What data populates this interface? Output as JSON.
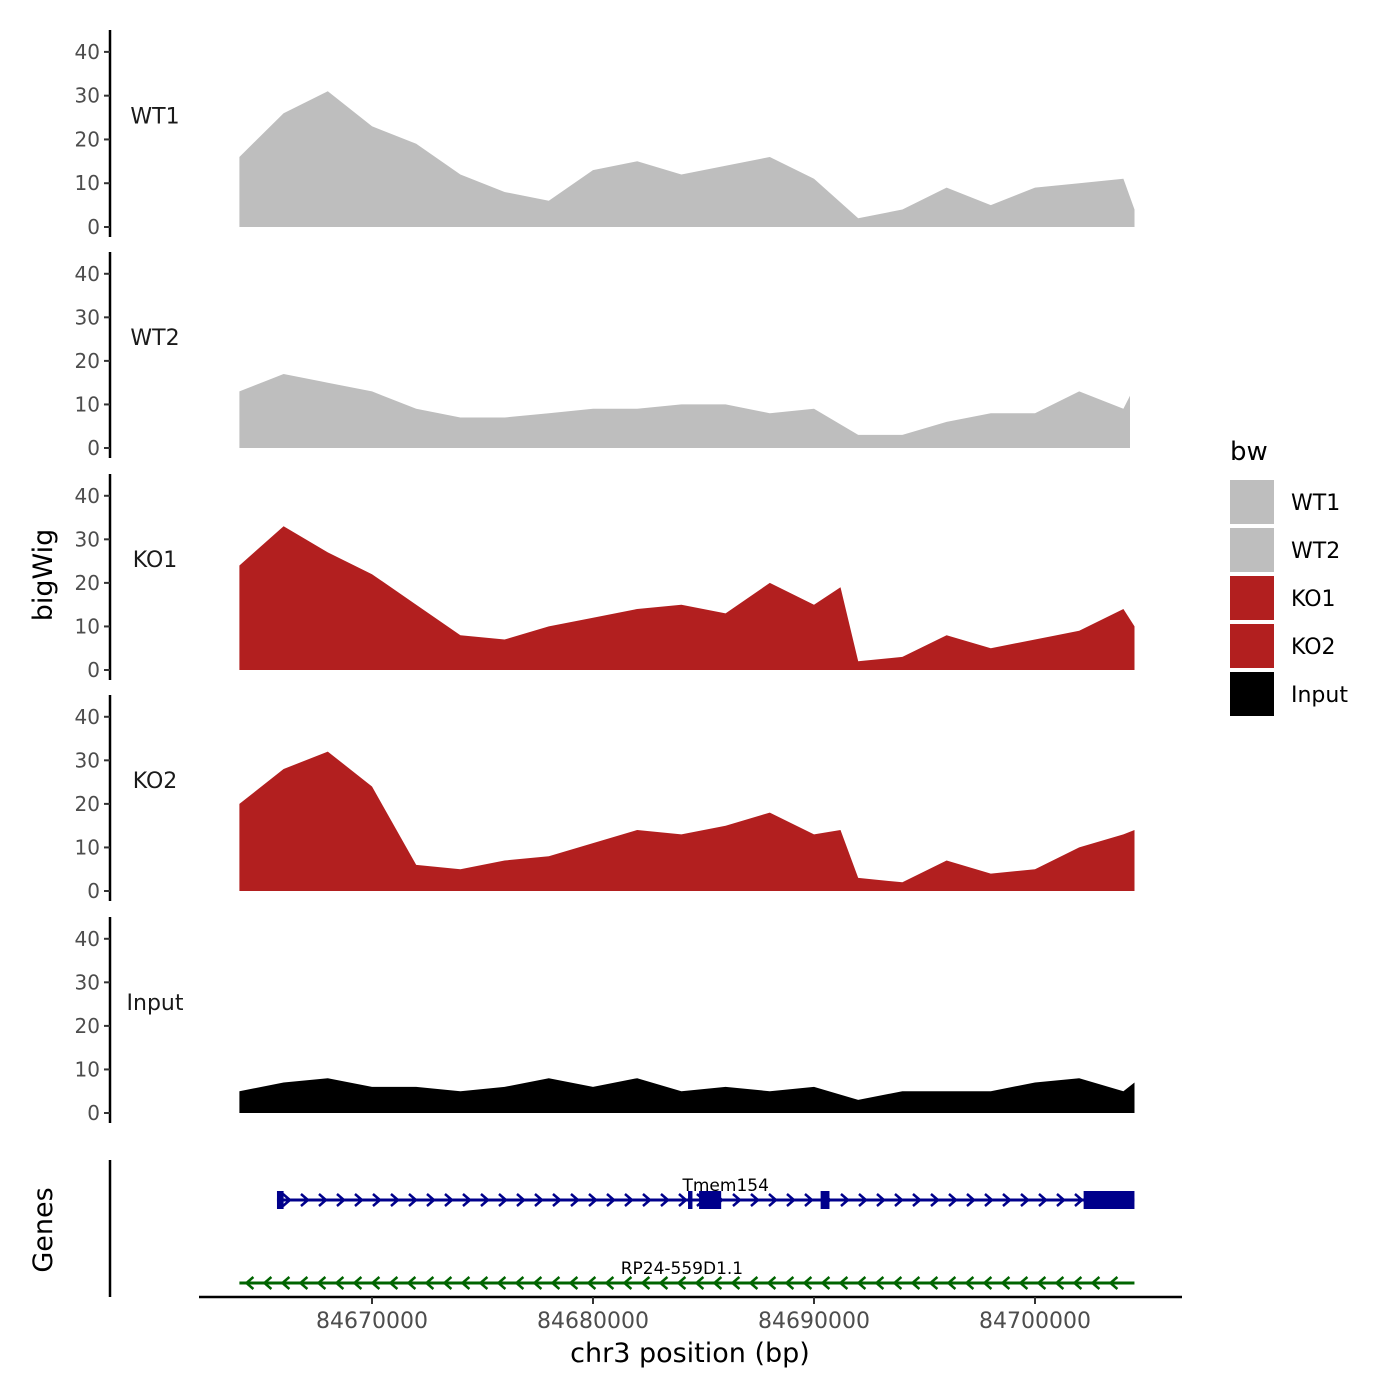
{
  "chart_data": {
    "type": "area",
    "title": "",
    "xlabel": "chr3 position (bp)",
    "ylabel": "bigWig",
    "genes_label": "Genes",
    "xlim": [
      84662000,
      84707000
    ],
    "ylim": [
      0,
      45
    ],
    "x_ticks": [
      84670000,
      84680000,
      84690000,
      84700000
    ],
    "x_tick_labels": [
      "84670000",
      "84680000",
      "84690000",
      "84700000"
    ],
    "y_ticks": [
      0,
      10,
      20,
      30,
      40
    ],
    "y_tick_labels": [
      "0",
      "10",
      "20",
      "30",
      "40"
    ],
    "legend": {
      "title": "bw",
      "position": "right",
      "entries": [
        {
          "label": "WT1",
          "color": "#bebebe"
        },
        {
          "label": "WT2",
          "color": "#bebebe"
        },
        {
          "label": "KO1",
          "color": "#b21f1f"
        },
        {
          "label": "KO2",
          "color": "#b21f1f"
        },
        {
          "label": "Input",
          "color": "#000000"
        }
      ]
    },
    "series": [
      {
        "name": "WT1",
        "color": "#bebebe",
        "x": [
          84664000,
          84666000,
          84668000,
          84670000,
          84672000,
          84674000,
          84676000,
          84678000,
          84680000,
          84682000,
          84684000,
          84686000,
          84688000,
          84690000,
          84692000,
          84694000,
          84696000,
          84698000,
          84700000,
          84702000,
          84704000,
          84704500
        ],
        "values": [
          16,
          26,
          31,
          23,
          19,
          12,
          8,
          6,
          13,
          15,
          12,
          14,
          16,
          11,
          2,
          4,
          9,
          5,
          9,
          10,
          11,
          4
        ]
      },
      {
        "name": "WT2",
        "color": "#bebebe",
        "x": [
          84664000,
          84666000,
          84668000,
          84670000,
          84672000,
          84674000,
          84676000,
          84678000,
          84680000,
          84682000,
          84684000,
          84686000,
          84688000,
          84690000,
          84692000,
          84694000,
          84696000,
          84698000,
          84700000,
          84702000,
          84704000,
          84704300
        ],
        "values": [
          13,
          17,
          15,
          13,
          9,
          7,
          7,
          8,
          9,
          9,
          10,
          10,
          8,
          9,
          3,
          3,
          6,
          8,
          8,
          13,
          9,
          12
        ]
      },
      {
        "name": "KO1",
        "color": "#b21f1f",
        "x": [
          84664000,
          84666000,
          84668000,
          84670000,
          84672000,
          84674000,
          84676000,
          84678000,
          84680000,
          84682000,
          84684000,
          84686000,
          84688000,
          84690000,
          84691200,
          84692000,
          84694000,
          84696000,
          84698000,
          84700000,
          84702000,
          84704000,
          84704500
        ],
        "values": [
          24,
          33,
          27,
          22,
          15,
          8,
          7,
          10,
          12,
          14,
          15,
          13,
          20,
          15,
          19,
          2,
          3,
          8,
          5,
          7,
          9,
          14,
          10
        ]
      },
      {
        "name": "KO2",
        "color": "#b21f1f",
        "x": [
          84664000,
          84666000,
          84668000,
          84670000,
          84672000,
          84674000,
          84676000,
          84678000,
          84680000,
          84682000,
          84684000,
          84686000,
          84688000,
          84690000,
          84691200,
          84692000,
          84694000,
          84696000,
          84698000,
          84700000,
          84702000,
          84704000,
          84704500
        ],
        "values": [
          20,
          28,
          32,
          24,
          6,
          5,
          7,
          8,
          11,
          14,
          13,
          15,
          18,
          13,
          14,
          3,
          2,
          7,
          4,
          5,
          10,
          13,
          14
        ]
      },
      {
        "name": "Input",
        "color": "#000000",
        "x": [
          84664000,
          84666000,
          84668000,
          84670000,
          84672000,
          84674000,
          84676000,
          84678000,
          84680000,
          84682000,
          84684000,
          84686000,
          84688000,
          84690000,
          84692000,
          84694000,
          84696000,
          84698000,
          84700000,
          84702000,
          84704000,
          84704500
        ],
        "values": [
          5,
          7,
          8,
          6,
          6,
          5,
          6,
          8,
          6,
          8,
          5,
          6,
          5,
          6,
          3,
          5,
          5,
          5,
          7,
          8,
          5,
          7
        ]
      }
    ],
    "genes": [
      {
        "name": "Tmem154",
        "color": "#00008b",
        "strand": "+",
        "start": 84665700,
        "end": 84704500,
        "exons": [
          [
            84665700,
            84666000
          ],
          [
            84684300,
            84684500
          ],
          [
            84684800,
            84685800
          ],
          [
            84690300,
            84690700
          ],
          [
            84702200,
            84704500
          ]
        ]
      },
      {
        "name": "RP24-559D1.1",
        "color": "#006400",
        "strand": "-",
        "start": 84664000,
        "end": 84704500,
        "exons": []
      }
    ]
  }
}
